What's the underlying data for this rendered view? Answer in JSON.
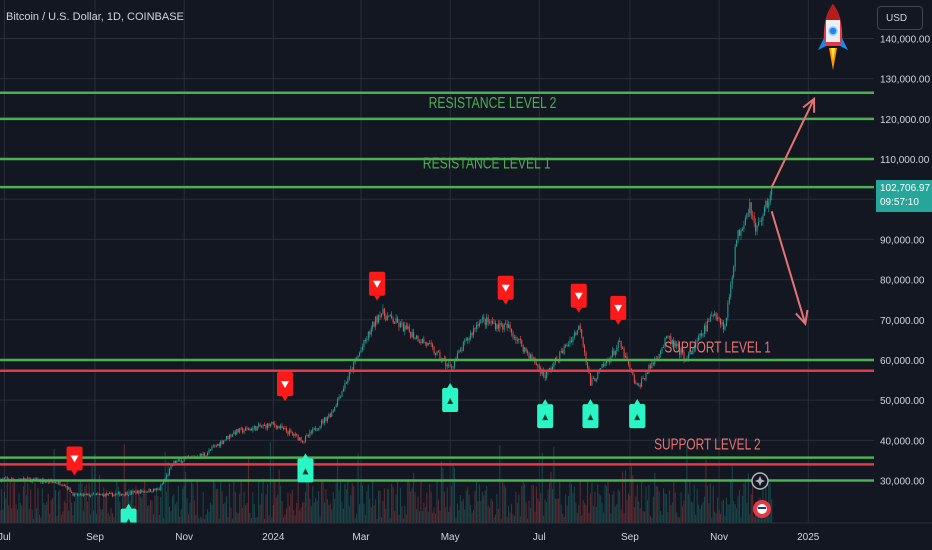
{
  "header": {
    "symbol_title": "Bitcoin / U.S. Dollar, 1D, COINBASE",
    "currency_button": "USD"
  },
  "price_scale": {
    "last_price": "102,706.97",
    "countdown": "09:57:10"
  },
  "colors": {
    "background": "#131722",
    "grid": "#2a2e39",
    "up": "#26a69a",
    "down": "#ef5350",
    "level_line": "#4caf50",
    "support_red": "#e53945",
    "resistance_text": "#4caf50",
    "support_text": "#e57373",
    "arrow": "#e57373",
    "buy_marker": "#2af5c4",
    "sell_marker": "#ff1a1a"
  },
  "chart_data": {
    "type": "candlestick",
    "title": "Bitcoin / U.S. Dollar, 1D, COINBASE",
    "x_tick_labels": [
      "Jul",
      "Sep",
      "Nov",
      "2024",
      "Mar",
      "May",
      "Jul",
      "Sep",
      "Nov",
      "2025"
    ],
    "x_tick_dates": [
      "2023-07-01",
      "2023-09-01",
      "2023-11-01",
      "2024-01-01",
      "2024-03-01",
      "2024-05-01",
      "2024-07-01",
      "2024-09-01",
      "2024-11-01",
      "2025-01-01"
    ],
    "x_range": [
      "2023-06-28",
      "2025-02-15"
    ],
    "y_tick_labels": [
      "30,000.00",
      "40,000.00",
      "50,000.00",
      "60,000.00",
      "70,000.00",
      "80,000.00",
      "90,000.00",
      "100,000.00",
      "110,000.00",
      "120,000.00",
      "130,000.00",
      "140,000.00"
    ],
    "y_ticks": [
      30000,
      40000,
      50000,
      60000,
      70000,
      80000,
      90000,
      100000,
      110000,
      120000,
      130000,
      140000
    ],
    "ylim": [
      23000,
      142000
    ],
    "grid": true,
    "last_price": 102706.97,
    "price_path": [
      {
        "date": "2023-06-28",
        "price": 30300
      },
      {
        "date": "2023-07-15",
        "price": 30300
      },
      {
        "date": "2023-08-10",
        "price": 29400
      },
      {
        "date": "2023-08-18",
        "price": 26300
      },
      {
        "date": "2023-09-15",
        "price": 26500
      },
      {
        "date": "2023-10-15",
        "price": 27800
      },
      {
        "date": "2023-10-25",
        "price": 34500
      },
      {
        "date": "2023-11-15",
        "price": 36500
      },
      {
        "date": "2023-12-05",
        "price": 42000
      },
      {
        "date": "2024-01-01",
        "price": 44000
      },
      {
        "date": "2024-01-22",
        "price": 40000
      },
      {
        "date": "2024-02-10",
        "price": 47000
      },
      {
        "date": "2024-02-28",
        "price": 61000
      },
      {
        "date": "2024-03-14",
        "price": 72000
      },
      {
        "date": "2024-04-15",
        "price": 64000
      },
      {
        "date": "2024-05-01",
        "price": 58000
      },
      {
        "date": "2024-05-21",
        "price": 70000
      },
      {
        "date": "2024-06-10",
        "price": 68000
      },
      {
        "date": "2024-07-05",
        "price": 56000
      },
      {
        "date": "2024-07-29",
        "price": 68500
      },
      {
        "date": "2024-08-05",
        "price": 54000
      },
      {
        "date": "2024-08-25",
        "price": 64000
      },
      {
        "date": "2024-09-06",
        "price": 53000
      },
      {
        "date": "2024-09-27",
        "price": 65500
      },
      {
        "date": "2024-10-10",
        "price": 60000
      },
      {
        "date": "2024-10-29",
        "price": 72000
      },
      {
        "date": "2024-11-05",
        "price": 68000
      },
      {
        "date": "2024-11-13",
        "price": 90000
      },
      {
        "date": "2024-11-22",
        "price": 99000
      },
      {
        "date": "2024-11-26",
        "price": 92000
      },
      {
        "date": "2024-12-05",
        "price": 100000
      },
      {
        "date": "2024-12-07",
        "price": 102700
      }
    ],
    "horizontal_levels": [
      {
        "price": 126500,
        "color": "green"
      },
      {
        "price": 120000,
        "color": "green"
      },
      {
        "price": 110000,
        "color": "green"
      },
      {
        "price": 103000,
        "color": "green"
      },
      {
        "price": 60000,
        "color": "green"
      },
      {
        "price": 57300,
        "color": "red"
      },
      {
        "price": 35700,
        "color": "green"
      },
      {
        "price": 34000,
        "color": "red"
      },
      {
        "price": 30000,
        "color": "green"
      }
    ],
    "annotations": [
      {
        "text": "RESISTANCE LEVEL 2",
        "date": "2024-05-30",
        "price": 122700,
        "kind": "resistance"
      },
      {
        "text": "RESISTANCE LEVEL 1",
        "date": "2024-05-26",
        "price": 107700,
        "kind": "resistance"
      },
      {
        "text": "SUPPORT LEVEL 1",
        "date": "2024-10-31",
        "price": 61900,
        "kind": "support"
      },
      {
        "text": "SUPPORT LEVEL 2",
        "date": "2024-10-24",
        "price": 37700,
        "kind": "support"
      }
    ],
    "projection_arrows": [
      {
        "from_date": "2024-12-07",
        "from_price": 103000,
        "to_date": "2025-01-05",
        "to_price": 125000,
        "direction": "up"
      },
      {
        "from_date": "2024-12-07",
        "from_price": 97000,
        "to_date": "2024-12-30",
        "to_price": 69000,
        "direction": "down"
      }
    ],
    "sell_signals": [
      {
        "date": "2023-08-18",
        "price": 29500
      },
      {
        "date": "2024-01-09",
        "price": 48000
      },
      {
        "date": "2024-03-12",
        "price": 73000
      },
      {
        "date": "2024-06-08",
        "price": 72000
      },
      {
        "date": "2024-07-28",
        "price": 70000
      },
      {
        "date": "2024-08-24",
        "price": 67000
      },
      {
        "date": "2024-01-09",
        "price": 48000
      }
    ],
    "buy_signals": [
      {
        "date": "2023-09-24",
        "price": 26000
      },
      {
        "date": "2024-01-23",
        "price": 38500
      },
      {
        "date": "2024-05-01",
        "price": 56000
      },
      {
        "date": "2024-07-05",
        "price": 52000
      },
      {
        "date": "2024-08-05",
        "price": 52000
      },
      {
        "date": "2024-09-06",
        "price": 52000
      },
      {
        "date": "2024-09-06",
        "price": 52000
      }
    ]
  }
}
